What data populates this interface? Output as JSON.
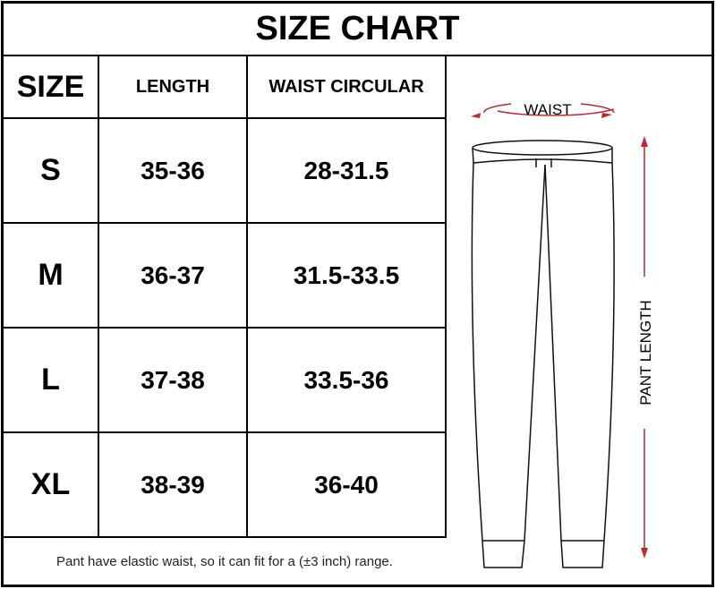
{
  "title": "SIZE CHART",
  "headers": [
    "SIZE",
    "LENGTH",
    "WAIST CIRCULAR"
  ],
  "rows": [
    {
      "size": "S",
      "length": "35-36",
      "waist": "28-31.5"
    },
    {
      "size": "M",
      "length": "36-37",
      "waist": "31.5-33.5"
    },
    {
      "size": "L",
      "length": "37-38",
      "waist": "33.5-36"
    },
    {
      "size": "XL",
      "length": "38-39",
      "waist": "36-40"
    }
  ],
  "note": "Pant have elastic waist, so it can fit for a (±3 inch) range.",
  "diagram": {
    "waist_label": "WAIST",
    "length_label": "PANT LENGTH",
    "arrow_color": "#c0272d"
  }
}
